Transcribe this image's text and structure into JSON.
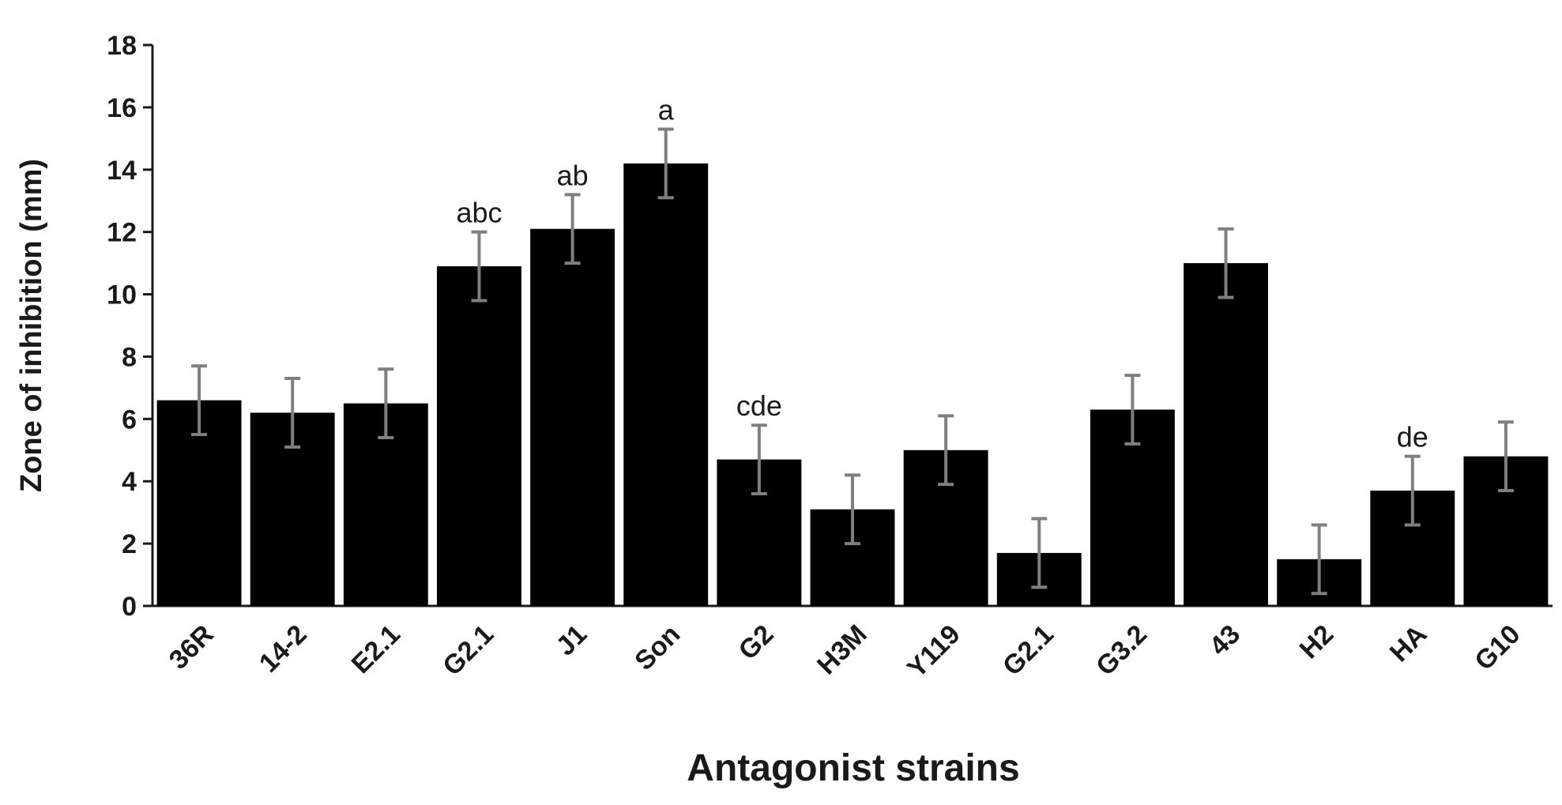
{
  "chart_data": {
    "type": "bar",
    "title": "",
    "xlabel": "Antagonist strains",
    "ylabel": "Zone  of inhibition  (mm)",
    "ylim": [
      0,
      18
    ],
    "yticks": [
      "0",
      "2",
      "4",
      "6",
      "8",
      "10",
      "12",
      "14",
      "16",
      "18"
    ],
    "categories": [
      "36R",
      "14-2",
      "E2.1",
      "G2.1",
      "J1",
      "Son",
      "G2",
      "H3M",
      "Y119",
      "G2.1",
      "G3.2",
      "43",
      "H2",
      "HA",
      "G10"
    ],
    "values": [
      6.6,
      6.2,
      6.5,
      10.9,
      12.1,
      14.2,
      4.7,
      3.1,
      5.0,
      1.7,
      6.3,
      11.0,
      1.5,
      3.7,
      4.8
    ],
    "error": [
      1.1,
      1.1,
      1.1,
      1.1,
      1.1,
      1.1,
      1.1,
      1.1,
      1.1,
      1.1,
      1.1,
      1.1,
      1.1,
      1.1,
      1.1
    ],
    "letters": [
      "",
      "",
      "",
      "abc",
      "ab",
      "a",
      "cde",
      "",
      "",
      "",
      "",
      "",
      "",
      "de",
      ""
    ],
    "bar_color": "#000000",
    "error_color": "#7f7f7f",
    "grid": false,
    "legend": "none"
  }
}
